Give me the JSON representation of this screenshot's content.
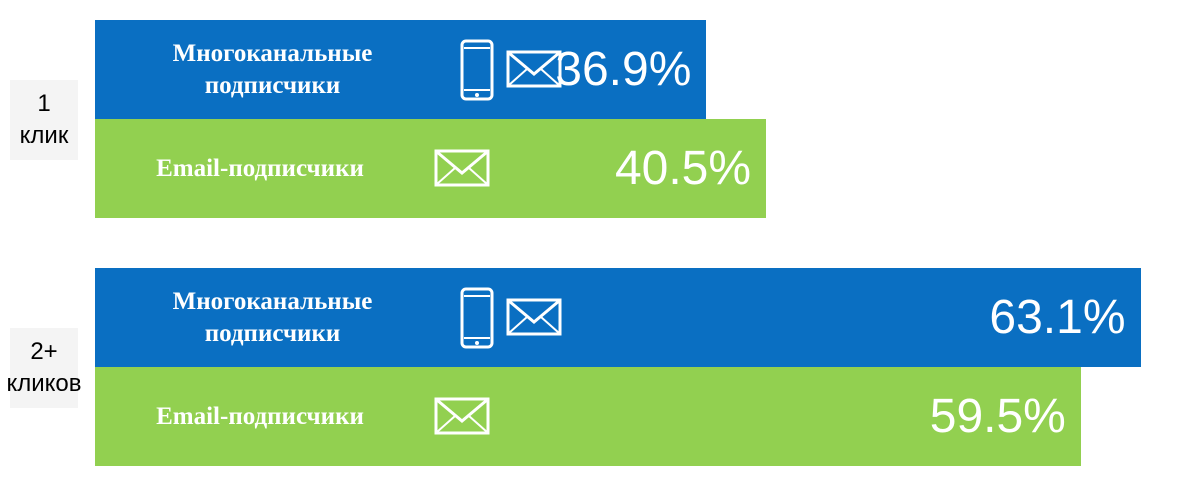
{
  "chart_data": {
    "type": "bar",
    "orientation": "horizontal",
    "categories": [
      "1 клик",
      "2+ кликов"
    ],
    "series": [
      {
        "name": "Многоканальные подписчики",
        "color": "#0a6fc2",
        "values": [
          36.9,
          63.1
        ],
        "value_labels": [
          "36.9%",
          "63.1%"
        ]
      },
      {
        "name": "Email-подписчики",
        "color": "#92d050",
        "values": [
          40.5,
          59.5
        ],
        "value_labels": [
          "40.5%",
          "59.5%"
        ]
      }
    ],
    "xlim": [
      0,
      65
    ]
  }
}
